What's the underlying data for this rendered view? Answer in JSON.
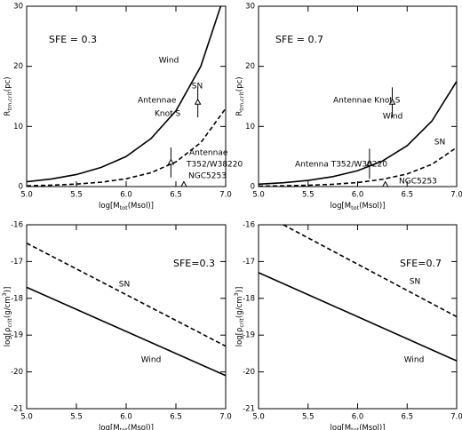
{
  "chart_data": [
    {
      "type": "line",
      "xlabel": [
        {
          "text": "log[M"
        },
        {
          "text": "tot",
          "style": "sub"
        },
        {
          "text": "(Msol)]"
        }
      ],
      "ylabel": [
        {
          "text": "R"
        },
        {
          "text": "tm,crit",
          "style": "sub"
        },
        {
          "text": "(pc)"
        }
      ],
      "xlim": [
        5.0,
        7.0
      ],
      "ylim": [
        0,
        30
      ],
      "xticks": [
        {
          "value": 5.0,
          "label": "5.0"
        },
        {
          "value": 5.5,
          "label": "5.5"
        },
        {
          "value": 6.0,
          "label": "6.0"
        },
        {
          "value": 6.5,
          "label": "6.5"
        },
        {
          "value": 7.0,
          "label": "7.0"
        }
      ],
      "yticks": [
        0,
        10,
        20,
        30
      ],
      "series": [
        {
          "name": "Wind",
          "color": "#000000",
          "linestyle": "solid",
          "x": [
            5.0,
            5.25,
            5.5,
            5.75,
            6.0,
            6.25,
            6.5,
            6.75,
            6.95
          ],
          "values": [
            0.8,
            1.27,
            2.0,
            3.2,
            5.0,
            8.0,
            12.6,
            20.0,
            30.0
          ]
        },
        {
          "name": "SN",
          "color": "#000000",
          "linestyle": "dashed",
          "x": [
            5.0,
            5.25,
            5.5,
            5.75,
            6.0,
            6.25,
            6.5,
            6.75,
            7.0
          ],
          "values": [
            0.13,
            0.23,
            0.41,
            0.73,
            1.3,
            2.31,
            4.11,
            7.31,
            13.0
          ]
        }
      ],
      "points": {
        "color": "#000000",
        "x": [
          6.72,
          6.45,
          6.58
        ],
        "values": [
          14,
          4,
          0.3
        ],
        "errors": [
          2.5,
          2.5,
          null
        ]
      },
      "annotations": [
        "SFE = 0.3",
        "Antennae",
        "Knot S",
        "Antennae",
        "T352/W38220",
        "NGC5253"
      ]
    },
    {
      "type": "line",
      "xlabel": [
        {
          "text": "log[M"
        },
        {
          "text": "tot",
          "style": "sub"
        },
        {
          "text": "(Msol)]"
        }
      ],
      "ylabel": [
        {
          "text": "R"
        },
        {
          "text": "tm,crit",
          "style": "sub"
        },
        {
          "text": "(pc)"
        }
      ],
      "xlim": [
        5.0,
        7.0
      ],
      "ylim": [
        0,
        30
      ],
      "xticks": [
        {
          "value": 5.0,
          "label": "5.0"
        },
        {
          "value": 5.5,
          "label": "5.5"
        },
        {
          "value": 6.0,
          "label": "6.0"
        },
        {
          "value": 6.5,
          "label": "6.5"
        },
        {
          "value": 7.0,
          "label": "7.0"
        }
      ],
      "yticks": [
        0,
        10,
        20,
        30
      ],
      "series": [
        {
          "name": "Wind",
          "color": "#000000",
          "linestyle": "solid",
          "x": [
            5.0,
            5.25,
            5.5,
            5.75,
            6.0,
            6.25,
            6.5,
            6.75,
            7.0
          ],
          "values": [
            0.4,
            0.64,
            1.03,
            1.65,
            2.64,
            4.24,
            6.8,
            10.9,
            17.5
          ]
        },
        {
          "name": "SN",
          "color": "#000000",
          "linestyle": "dashed",
          "x": [
            5.0,
            5.25,
            5.5,
            5.75,
            6.0,
            6.25,
            6.5,
            6.75,
            7.0
          ],
          "values": [
            0.07,
            0.12,
            0.22,
            0.38,
            0.67,
            1.2,
            2.1,
            3.7,
            6.5
          ]
        }
      ],
      "points": {
        "color": "#000000",
        "x": [
          6.35,
          6.12,
          6.28
        ],
        "values": [
          14,
          3.8,
          0.3
        ],
        "errors": [
          2.5,
          2.5,
          null
        ]
      },
      "annotations": [
        "SFE = 0.7",
        "Antennae Knot S",
        "Antenna T352/W38220",
        "NGC5253"
      ]
    },
    {
      "type": "line",
      "xlabel": [
        {
          "text": "log[M"
        },
        {
          "text": "tot",
          "style": "sub"
        },
        {
          "text": "(Msol)]"
        }
      ],
      "ylabel": [
        {
          "text": "log[ρ"
        },
        {
          "text": "crit",
          "style": "sub"
        },
        {
          "text": "(g/cm"
        },
        {
          "text": "3",
          "style": "sup"
        },
        {
          "text": ")]"
        }
      ],
      "xlim": [
        5.0,
        7.0
      ],
      "ylim": [
        -21,
        -16
      ],
      "xticks": [
        {
          "value": 5.0,
          "label": "5.0"
        },
        {
          "value": 5.5,
          "label": "5.5"
        },
        {
          "value": 6.0,
          "label": "6.0"
        },
        {
          "value": 6.5,
          "label": "6.5"
        },
        {
          "value": 7.0,
          "label": "7.0"
        }
      ],
      "yticks": [
        -21,
        -20,
        -19,
        -18,
        -17,
        -16
      ],
      "series": [
        {
          "name": "SN",
          "color": "#000000",
          "linestyle": "dashed",
          "x": [
            5.0,
            7.0
          ],
          "values": [
            -16.5,
            -19.3
          ]
        },
        {
          "name": "Wind",
          "color": "#000000",
          "linestyle": "solid",
          "x": [
            5.0,
            7.0
          ],
          "values": [
            -17.7,
            -20.1
          ]
        }
      ],
      "annotations": [
        "SFE=0.3"
      ]
    },
    {
      "type": "line",
      "xlabel": [
        {
          "text": "log[M"
        },
        {
          "text": "tot",
          "style": "sub"
        },
        {
          "text": "(Msol)]"
        }
      ],
      "ylabel": [
        {
          "text": "log[ρ"
        },
        {
          "text": "crit",
          "style": "sub"
        },
        {
          "text": "(g/cm"
        },
        {
          "text": "3",
          "style": "sup"
        },
        {
          "text": ")]"
        }
      ],
      "xlim": [
        5.0,
        7.0
      ],
      "ylim": [
        -21,
        -16
      ],
      "xticks": [
        {
          "value": 5.0,
          "label": "5.0"
        },
        {
          "value": 5.5,
          "label": "5.5"
        },
        {
          "value": 6.0,
          "label": "6.0"
        },
        {
          "value": 6.5,
          "label": "6.5"
        },
        {
          "value": 7.0,
          "label": "7.0"
        }
      ],
      "yticks": [
        -21,
        -20,
        -19,
        -18,
        -17,
        -16
      ],
      "series": [
        {
          "name": "SN",
          "color": "#000000",
          "linestyle": "dashed",
          "x": [
            5.25,
            7.0
          ],
          "values": [
            -16.0,
            -18.5
          ]
        },
        {
          "name": "Wind",
          "color": "#000000",
          "linestyle": "solid",
          "x": [
            5.0,
            7.0
          ],
          "values": [
            -17.3,
            -19.7
          ]
        }
      ],
      "annotations": [
        "SFE=0.7"
      ]
    }
  ]
}
